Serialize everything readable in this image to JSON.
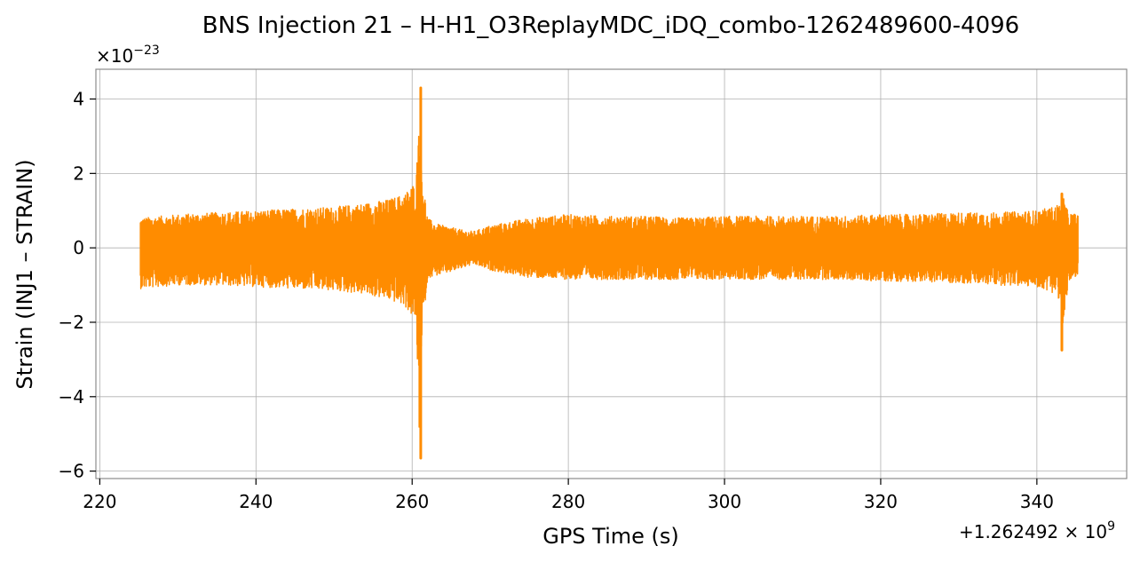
{
  "chart_data": {
    "type": "line",
    "title": "BNS Injection 21 – H-H1_O3ReplayMDC_iDQ_combo-1262489600-4096",
    "xlabel": "GPS Time (s)",
    "ylabel": "Strain (INJ1 – STRAIN)",
    "x_offset_label": "+1.262492 × 10",
    "x_offset_exponent": "9",
    "y_scale_label": "×10",
    "y_scale_exponent": "−23",
    "xlim": [
      219.5,
      351.5
    ],
    "ylim": [
      -6.2,
      4.8
    ],
    "x_ticks": [
      220,
      240,
      260,
      280,
      300,
      320,
      340
    ],
    "x_tick_labels": [
      "220",
      "240",
      "260",
      "280",
      "300",
      "320",
      "340"
    ],
    "y_ticks": [
      -6,
      -4,
      -2,
      0,
      2,
      4
    ],
    "y_tick_labels": [
      "−6",
      "−4",
      "−2",
      "0",
      "2",
      "4"
    ],
    "grid": true,
    "series": [
      {
        "color": "#ff8c00",
        "x_start": 225.2,
        "x_end": 345.3,
        "envelope_x": [
          225.2,
          230,
          235,
          240,
          245,
          250,
          254,
          257,
          259,
          260.5,
          261.0,
          261.3,
          262,
          263,
          265,
          267,
          268,
          270,
          275,
          280,
          285,
          290,
          295,
          300,
          305,
          310,
          315,
          320,
          325,
          330,
          335,
          340,
          342,
          343,
          343.3,
          344,
          345.3
        ],
        "envelope_upper": [
          0.8,
          0.9,
          0.95,
          1.0,
          1.05,
          1.1,
          1.2,
          1.3,
          1.45,
          1.8,
          4.3,
          1.9,
          0.8,
          0.65,
          0.55,
          0.45,
          0.45,
          0.6,
          0.8,
          0.9,
          0.85,
          0.85,
          0.8,
          0.85,
          0.85,
          0.85,
          0.85,
          0.9,
          0.9,
          0.95,
          0.95,
          1.0,
          1.1,
          1.2,
          1.45,
          0.95,
          0.9
        ],
        "envelope_lower": [
          -1.1,
          -1.0,
          -1.0,
          -1.05,
          -1.1,
          -1.15,
          -1.25,
          -1.4,
          -1.55,
          -2.0,
          -5.65,
          -2.2,
          -0.8,
          -0.75,
          -0.65,
          -0.5,
          -0.45,
          -0.6,
          -0.8,
          -0.85,
          -0.85,
          -0.85,
          -0.85,
          -0.85,
          -0.85,
          -0.85,
          -0.85,
          -0.9,
          -0.9,
          -0.95,
          -1.0,
          -1.05,
          -1.2,
          -1.4,
          -2.75,
          -0.9,
          -0.85
        ],
        "spikes": [
          {
            "x": 261.1,
            "min": -5.65,
            "max": 4.3
          },
          {
            "x": 343.2,
            "min": -2.75,
            "max": 1.45
          }
        ]
      }
    ]
  }
}
